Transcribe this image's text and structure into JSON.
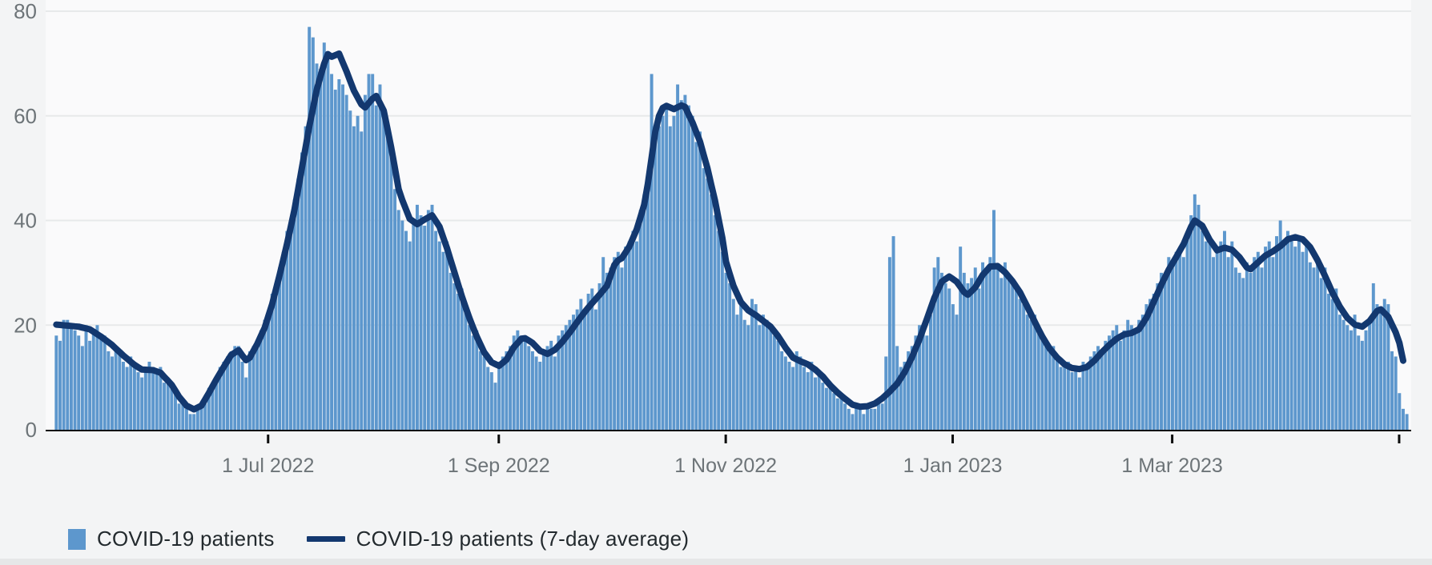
{
  "page": {
    "background": "#f3f4f5",
    "plot_background": "#fafafb"
  },
  "colors": {
    "bar": "#5d97cd",
    "line": "#13386f",
    "grid": "#e7e9ea",
    "axis": "#0b0c0c",
    "tick_label": "#6d7478",
    "legend_text": "#232a2e"
  },
  "legend": {
    "bar_label": "COVID-19 patients",
    "line_label": "COVID-19 patients (7-day average)"
  },
  "chart_data": {
    "type": "bar",
    "subtype": "daily-bars-with-7day-average-line",
    "title": "",
    "xlabel": "",
    "ylabel": "",
    "x_start_date": "2022-05-05",
    "x_unit": "day",
    "ylim": [
      0,
      80
    ],
    "y_ticks": [
      "0",
      "20",
      "40",
      "60",
      "80"
    ],
    "grid": "horizontal",
    "legend_position": "bottom-left",
    "x_ticks": [
      {
        "label": "1 Jul 2022",
        "day": 57
      },
      {
        "label": "1 Sep 2022",
        "day": 119
      },
      {
        "label": "1 Nov 2022",
        "day": 180
      },
      {
        "label": "1 Jan 2023",
        "day": 241
      },
      {
        "label": "1 Mar 2023",
        "day": 300
      },
      {
        "label": "",
        "day": 361
      }
    ],
    "series": [
      {
        "name": "COVID-19 patients",
        "type": "bar",
        "values": [
          18,
          17,
          21,
          21,
          20,
          19,
          18,
          16,
          20,
          17,
          19,
          20,
          18,
          18,
          15,
          14,
          16,
          15,
          13,
          12,
          14,
          13,
          11,
          10,
          12,
          13,
          12,
          11,
          12,
          9,
          10,
          8,
          7,
          5,
          5,
          4,
          3,
          3,
          4,
          5,
          5,
          8,
          9,
          10,
          12,
          13,
          14,
          15,
          16,
          16,
          13,
          10,
          15,
          16,
          17,
          19,
          21,
          22,
          26,
          28,
          31,
          34,
          38,
          40,
          44,
          48,
          53,
          58,
          77,
          75,
          70,
          69,
          74,
          71,
          68,
          65,
          67,
          66,
          64,
          61,
          58,
          60,
          57,
          64,
          68,
          68,
          62,
          66,
          60,
          57,
          53,
          46,
          42,
          40,
          38,
          36,
          40,
          43,
          41,
          39,
          42,
          43,
          38,
          36,
          34,
          36,
          30,
          28,
          26,
          27,
          24,
          20,
          18,
          19,
          15,
          14,
          12,
          11,
          9,
          13,
          14,
          15,
          16,
          18,
          19,
          18,
          17,
          16,
          15,
          14,
          13,
          15,
          16,
          17,
          14,
          18,
          19,
          20,
          21,
          22,
          23,
          25,
          22,
          26,
          27,
          23,
          28,
          33,
          30,
          31,
          33,
          34,
          31,
          35,
          36,
          38,
          36,
          42,
          45,
          49,
          68,
          55,
          58,
          60,
          62,
          58,
          60,
          66,
          63,
          64,
          62,
          60,
          55,
          57,
          50,
          48,
          45,
          41,
          38,
          34,
          30,
          28,
          25,
          22,
          24,
          21,
          20,
          25,
          24,
          20,
          22,
          21,
          19,
          18,
          17,
          15,
          14,
          13,
          12,
          15,
          14,
          12,
          11,
          13,
          10,
          11,
          9,
          8,
          9,
          7,
          6,
          7,
          5,
          4,
          3,
          5,
          4,
          3,
          5,
          4,
          4,
          5,
          5,
          14,
          33,
          37,
          16,
          12,
          13,
          15,
          16,
          18,
          20,
          19,
          18,
          22,
          31,
          33,
          30,
          28,
          27,
          24,
          22,
          35,
          30,
          28,
          29,
          31,
          27,
          32,
          30,
          33,
          42,
          31,
          29,
          32,
          29,
          28,
          27,
          25,
          24,
          22,
          21,
          22,
          19,
          18,
          17,
          15,
          16,
          14,
          12,
          13,
          13,
          11,
          12,
          10,
          13,
          12,
          14,
          15,
          16,
          15,
          17,
          18,
          19,
          20,
          17,
          19,
          21,
          20,
          19,
          21,
          22,
          24,
          25,
          26,
          28,
          30,
          29,
          33,
          31,
          34,
          35,
          33,
          38,
          41,
          45,
          43,
          38,
          36,
          37,
          33,
          35,
          36,
          38,
          33,
          36,
          31,
          30,
          29,
          32,
          30,
          33,
          34,
          31,
          35,
          36,
          33,
          37,
          40,
          36,
          38,
          36,
          35,
          37,
          34,
          36,
          32,
          31,
          33,
          29,
          31,
          26,
          25,
          27,
          22,
          21,
          20,
          19,
          22,
          18,
          17,
          19,
          21,
          28,
          24,
          23,
          25,
          24,
          15,
          14,
          7,
          4,
          3
        ]
      },
      {
        "name": "COVID-19 patients (7-day average)",
        "type": "line",
        "anchor_points": [
          [
            0,
            20.1
          ],
          [
            3,
            19.9
          ],
          [
            6,
            19.7
          ],
          [
            9,
            19.2
          ],
          [
            12,
            17.8
          ],
          [
            15,
            16.2
          ],
          [
            18,
            14.2
          ],
          [
            21,
            12.4
          ],
          [
            23,
            11.5
          ],
          [
            26,
            11.4
          ],
          [
            28,
            10.9
          ],
          [
            31,
            8.6
          ],
          [
            33,
            6.3
          ],
          [
            35,
            4.6
          ],
          [
            37,
            3.9
          ],
          [
            39,
            4.6
          ],
          [
            41,
            7
          ],
          [
            43,
            9.6
          ],
          [
            45,
            12
          ],
          [
            47,
            14.3
          ],
          [
            49,
            15.2
          ],
          [
            50,
            14.2
          ],
          [
            51,
            13.3
          ],
          [
            52,
            13.8
          ],
          [
            54,
            16.4
          ],
          [
            56,
            19.5
          ],
          [
            58,
            24
          ],
          [
            60,
            29.5
          ],
          [
            62,
            35.5
          ],
          [
            64,
            42
          ],
          [
            66,
            50
          ],
          [
            68,
            58
          ],
          [
            70,
            65
          ],
          [
            72,
            70
          ],
          [
            73,
            71.8
          ],
          [
            74,
            71.3
          ],
          [
            76,
            71.9
          ],
          [
            78,
            68.5
          ],
          [
            80,
            64.8
          ],
          [
            82,
            62.2
          ],
          [
            83,
            61.6
          ],
          [
            85,
            63.3
          ],
          [
            86,
            63.8
          ],
          [
            88,
            61
          ],
          [
            90,
            54
          ],
          [
            92,
            46
          ],
          [
            93,
            43.9
          ],
          [
            95,
            40.3
          ],
          [
            97,
            39.3
          ],
          [
            99,
            40.2
          ],
          [
            101,
            41
          ],
          [
            103,
            38.8
          ],
          [
            105,
            34.7
          ],
          [
            107,
            30.1
          ],
          [
            109,
            25.5
          ],
          [
            111,
            21.4
          ],
          [
            113,
            17.8
          ],
          [
            115,
            14.8
          ],
          [
            117,
            12.9
          ],
          [
            119,
            12.2
          ],
          [
            121,
            13.4
          ],
          [
            123,
            15.8
          ],
          [
            125,
            17.4
          ],
          [
            126,
            17.5
          ],
          [
            128,
            16.6
          ],
          [
            130,
            15.1
          ],
          [
            132,
            14.5
          ],
          [
            134,
            15.3
          ],
          [
            136,
            16.8
          ],
          [
            138,
            18.6
          ],
          [
            140,
            20.6
          ],
          [
            142,
            22.5
          ],
          [
            144,
            24.2
          ],
          [
            146,
            25.8
          ],
          [
            148,
            27.5
          ],
          [
            150,
            31.5
          ],
          [
            151,
            32.4
          ],
          [
            152,
            32.8
          ],
          [
            154,
            35
          ],
          [
            156,
            38.3
          ],
          [
            158,
            43
          ],
          [
            159,
            47
          ],
          [
            160,
            52
          ],
          [
            161,
            57
          ],
          [
            162,
            60
          ],
          [
            163,
            61.5
          ],
          [
            164,
            61.9
          ],
          [
            166,
            61.3
          ],
          [
            168,
            62
          ],
          [
            169,
            61.7
          ],
          [
            171,
            58.7
          ],
          [
            173,
            55.1
          ],
          [
            175,
            50
          ],
          [
            177,
            43.9
          ],
          [
            179,
            36.7
          ],
          [
            180,
            32.1
          ],
          [
            182,
            27.5
          ],
          [
            184,
            24.4
          ],
          [
            186,
            22.8
          ],
          [
            188,
            21.9
          ],
          [
            190,
            20.8
          ],
          [
            192,
            19.7
          ],
          [
            194,
            17.9
          ],
          [
            196,
            15.7
          ],
          [
            198,
            13.8
          ],
          [
            200,
            13.1
          ],
          [
            202,
            12.5
          ],
          [
            204,
            11.5
          ],
          [
            206,
            10.2
          ],
          [
            208,
            8.5
          ],
          [
            210,
            7.1
          ],
          [
            212,
            5.9
          ],
          [
            214,
            4.8
          ],
          [
            216,
            4.4
          ],
          [
            218,
            4.5
          ],
          [
            220,
            5
          ],
          [
            222,
            6
          ],
          [
            224,
            7.3
          ],
          [
            226,
            8.8
          ],
          [
            228,
            11
          ],
          [
            230,
            13.9
          ],
          [
            232,
            17.3
          ],
          [
            234,
            21.2
          ],
          [
            236,
            25.2
          ],
          [
            238,
            28.3
          ],
          [
            240,
            29.3
          ],
          [
            242,
            28.3
          ],
          [
            244,
            26.3
          ],
          [
            245,
            25.8
          ],
          [
            247,
            27.2
          ],
          [
            249,
            29.6
          ],
          [
            251,
            31.2
          ],
          [
            253,
            31.3
          ],
          [
            255,
            30.1
          ],
          [
            257,
            28.4
          ],
          [
            259,
            26.3
          ],
          [
            261,
            23.5
          ],
          [
            263,
            20.6
          ],
          [
            265,
            17.8
          ],
          [
            267,
            15.5
          ],
          [
            269,
            13.8
          ],
          [
            271,
            12.5
          ],
          [
            273,
            11.8
          ],
          [
            275,
            11.6
          ],
          [
            277,
            12
          ],
          [
            279,
            13.2
          ],
          [
            281,
            14.8
          ],
          [
            283,
            16.2
          ],
          [
            285,
            17.4
          ],
          [
            287,
            18.2
          ],
          [
            289,
            18.5
          ],
          [
            291,
            19.2
          ],
          [
            293,
            21.4
          ],
          [
            295,
            24.5
          ],
          [
            297,
            27.7
          ],
          [
            299,
            30.6
          ],
          [
            301,
            33
          ],
          [
            303,
            35.5
          ],
          [
            305,
            38.8
          ],
          [
            306,
            40
          ],
          [
            308,
            39
          ],
          [
            310,
            36.3
          ],
          [
            312,
            34.3
          ],
          [
            314,
            34.8
          ],
          [
            316,
            34.4
          ],
          [
            318,
            33
          ],
          [
            320,
            31
          ],
          [
            321,
            30.7
          ],
          [
            323,
            32
          ],
          [
            325,
            33.3
          ],
          [
            327,
            34.1
          ],
          [
            329,
            35.1
          ],
          [
            331,
            36.4
          ],
          [
            333,
            36.8
          ],
          [
            335,
            36.4
          ],
          [
            337,
            34.9
          ],
          [
            339,
            32.4
          ],
          [
            341,
            29.4
          ],
          [
            343,
            26.2
          ],
          [
            345,
            23.5
          ],
          [
            347,
            21.4
          ],
          [
            349,
            20.1
          ],
          [
            351,
            19.7
          ],
          [
            353,
            20.8
          ],
          [
            355,
            22.7
          ],
          [
            356,
            23
          ],
          [
            358,
            21.6
          ],
          [
            360,
            18.6
          ],
          [
            361,
            16.6
          ],
          [
            362,
            13.2
          ]
        ]
      }
    ]
  }
}
